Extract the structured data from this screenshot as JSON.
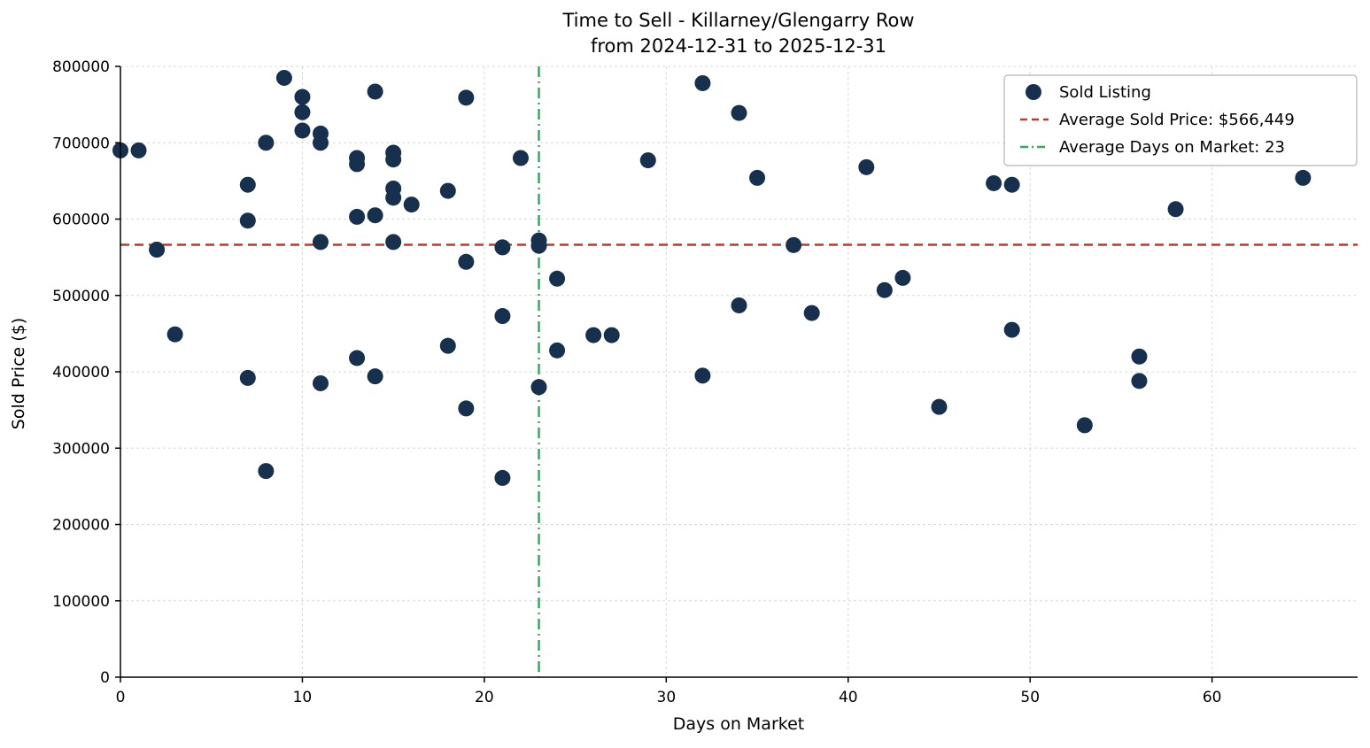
{
  "chart_data": {
    "type": "scatter",
    "title_line1": "Time to Sell - Killarney/Glengarry Row",
    "title_line2": "from 2024-12-31 to 2025-12-31",
    "xlabel": "Days on Market",
    "ylabel": "Sold Price ($)",
    "xlim": [
      0,
      68
    ],
    "ylim": [
      0,
      800000
    ],
    "xticks": [
      0,
      10,
      20,
      30,
      40,
      50,
      60
    ],
    "yticks": [
      0,
      100000,
      200000,
      300000,
      400000,
      500000,
      600000,
      700000,
      800000
    ],
    "grid": true,
    "legend_position": "upper right",
    "average_sold_price": 566449,
    "average_days_on_market": 23,
    "legend": [
      {
        "type": "point",
        "label": "Sold Listing"
      },
      {
        "type": "dash",
        "label": "Average Sold Price: $566,449"
      },
      {
        "type": "dashdot",
        "label": "Average Days on Market: 23"
      }
    ],
    "colors": {
      "point": "#16304d",
      "avg_price_line": "#c0392b",
      "avg_days_line": "#2fad5f",
      "grid": "#d9d9d9",
      "spine": "#000000",
      "legend_border": "#b3b3b3"
    },
    "points": [
      [
        0,
        690000
      ],
      [
        1,
        690000
      ],
      [
        2,
        560000
      ],
      [
        3,
        449000
      ],
      [
        7,
        645000
      ],
      [
        7,
        598000
      ],
      [
        7,
        392000
      ],
      [
        8,
        700000
      ],
      [
        8,
        270000
      ],
      [
        9,
        785000
      ],
      [
        10,
        760000
      ],
      [
        10,
        740000
      ],
      [
        10,
        716000
      ],
      [
        11,
        712000
      ],
      [
        11,
        700000
      ],
      [
        11,
        570000
      ],
      [
        11,
        385000
      ],
      [
        13,
        680000
      ],
      [
        13,
        672000
      ],
      [
        13,
        603000
      ],
      [
        13,
        418000
      ],
      [
        14,
        767000
      ],
      [
        14,
        605000
      ],
      [
        14,
        394000
      ],
      [
        15,
        687000
      ],
      [
        15,
        678000
      ],
      [
        15,
        640000
      ],
      [
        15,
        628000
      ],
      [
        15,
        570000
      ],
      [
        16,
        619000
      ],
      [
        18,
        637000
      ],
      [
        18,
        434000
      ],
      [
        19,
        759000
      ],
      [
        19,
        544000
      ],
      [
        19,
        352000
      ],
      [
        21,
        563000
      ],
      [
        21,
        473000
      ],
      [
        21,
        261000
      ],
      [
        22,
        680000
      ],
      [
        23,
        572000
      ],
      [
        23,
        565000
      ],
      [
        23,
        380000
      ],
      [
        24,
        522000
      ],
      [
        24,
        428000
      ],
      [
        26,
        448000
      ],
      [
        27,
        448000
      ],
      [
        29,
        677000
      ],
      [
        32,
        778000
      ],
      [
        32,
        395000
      ],
      [
        34,
        739000
      ],
      [
        34,
        487000
      ],
      [
        35,
        654000
      ],
      [
        37,
        566000
      ],
      [
        38,
        477000
      ],
      [
        41,
        668000
      ],
      [
        42,
        507000
      ],
      [
        43,
        523000
      ],
      [
        45,
        354000
      ],
      [
        48,
        647000
      ],
      [
        49,
        645000
      ],
      [
        49,
        455000
      ],
      [
        53,
        330000
      ],
      [
        56,
        420000
      ],
      [
        56,
        388000
      ],
      [
        58,
        613000
      ],
      [
        65,
        654000
      ]
    ]
  }
}
